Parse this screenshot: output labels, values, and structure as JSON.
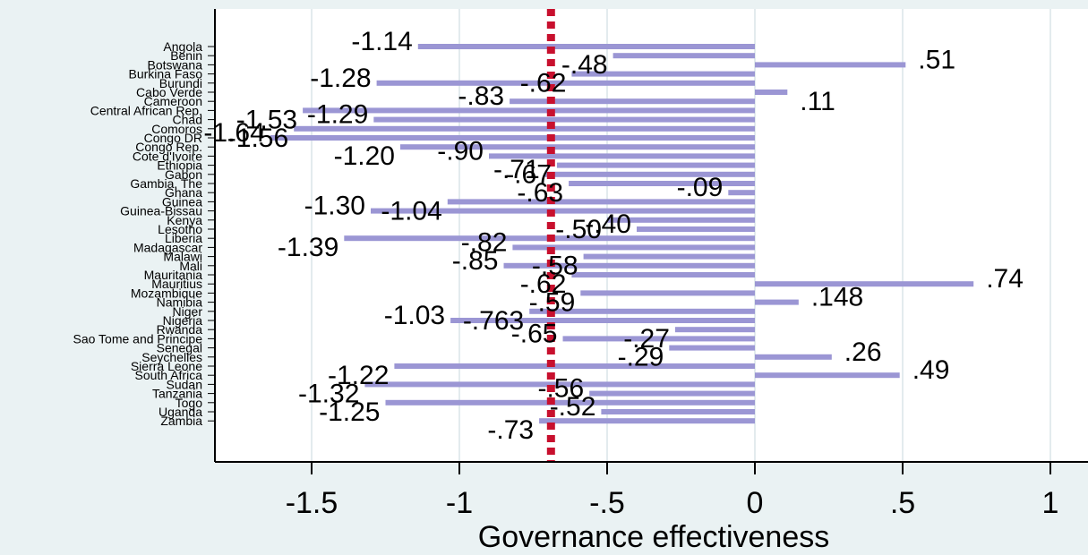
{
  "chart_data": {
    "type": "bar",
    "orientation": "horizontal",
    "xlabel": "Governance effectiveness",
    "xlim": [
      -1.8,
      1.0
    ],
    "xticks": [
      {
        "value": -1.5,
        "label": "-1.5"
      },
      {
        "value": -1.0,
        "label": "-1"
      },
      {
        "value": -0.5,
        "label": "-.5"
      },
      {
        "value": 0.0,
        "label": "0"
      },
      {
        "value": 0.5,
        "label": ".5"
      },
      {
        "value": 1.0,
        "label": "1"
      }
    ],
    "grid": true,
    "reference_line": {
      "value": -0.69,
      "style": "dashed",
      "color": "#c8102e"
    },
    "colors": {
      "bar": "#9b96d4",
      "background": "#eaf2f3",
      "plot": "#ffffff",
      "grid": "#e3ebee"
    },
    "categories": [
      "Angola",
      "Benin",
      "Botswana",
      "Burkina Faso",
      "Burundi",
      "Cabo Verde",
      "Cameroon",
      "Central African Rep.",
      "Chad",
      "Comoros",
      "Congo DR",
      "Congo Rep.",
      "Cote d'Ivoire",
      "Ethiopia",
      "Gabon",
      "Gambia, The",
      "Ghana",
      "Guinea",
      "Guinea-Bissau",
      "Kenya",
      "Lesotho",
      "Liberia",
      "Madagascar",
      "Malawi",
      "Mali",
      "Mauritania",
      "Mauritius",
      "Mozambique",
      "Namibia",
      "Niger",
      "Nigeria",
      "Rwanda",
      "Sao Tome and Principe",
      "Senegal",
      "Seychelles",
      "Sierra Leone",
      "South Africa",
      "Sudan",
      "Tanzania",
      "Togo",
      "Uganda",
      "Zambia"
    ],
    "values": [
      -1.14,
      -0.48,
      0.51,
      -0.62,
      -1.28,
      0.11,
      -0.83,
      -1.53,
      -1.29,
      -1.56,
      -1.64,
      -1.2,
      -0.9,
      -0.67,
      -0.71,
      -0.63,
      -0.09,
      -1.04,
      -1.3,
      -0.5,
      -0.4,
      -1.39,
      -0.82,
      -0.58,
      -0.85,
      -0.62,
      0.74,
      -0.59,
      0.148,
      -0.763,
      -1.03,
      -0.27,
      -0.65,
      -0.29,
      0.26,
      -1.22,
      0.49,
      -1.32,
      -0.56,
      -1.25,
      -0.52,
      -0.73
    ],
    "data_labels": [
      "-1.14",
      "-.48",
      ".51",
      "-.62",
      "-1.28",
      ".11",
      "-.83",
      "-1.53",
      "-1.29",
      "-1.56",
      "-1.64",
      "-1.20",
      "-.90",
      "-.67",
      "-.71",
      "-.63",
      "-.09",
      "-1.04",
      "-1.30",
      "-.50",
      "-.40",
      "-1.39",
      "-.82",
      "-.58",
      "-.85",
      "-.62",
      ".74",
      "-.59",
      ".148",
      "-.763",
      "-1.03",
      "-.27",
      "-.65",
      "-.29",
      ".26",
      "-1.22",
      ".49",
      "-1.32",
      "-.56",
      "-1.25",
      "-.52",
      "-.73"
    ]
  }
}
